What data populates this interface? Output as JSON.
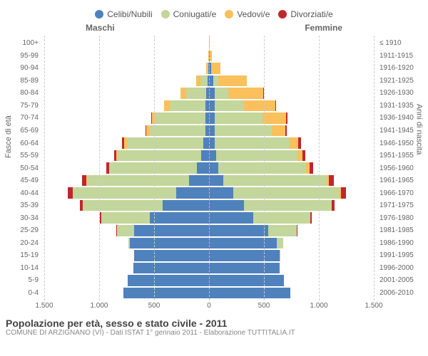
{
  "chart": {
    "type": "population-pyramid",
    "title": "Popolazione per età, sesso e stato civile - 2011",
    "subtitle": "COMUNE DI ARZIGNANO (VI) - Dati ISTAT 1° gennaio 2011 - Elaborazione TUTTITALIA.IT",
    "col_header_male": "Maschi",
    "col_header_female": "Femmine",
    "y_axis_left": "Fasce di età",
    "y_axis_right": "Anni di nascita",
    "x_axis_max": 1500,
    "x_ticks": [
      "1.500",
      "1.000",
      "500",
      "0",
      "500",
      "1.000",
      "1.500"
    ],
    "legend": [
      {
        "label": "Celibi/Nubili",
        "color": "#4f81bd"
      },
      {
        "label": "Coniugati/e",
        "color": "#c3d69b"
      },
      {
        "label": "Vedovi/e",
        "color": "#f9c05b"
      },
      {
        "label": "Divorziati/e",
        "color": "#c0272d"
      }
    ],
    "grid_color": "#cccccc",
    "background_color": "#ffffff",
    "label_fontsize": 10,
    "title_fontsize": 14,
    "age_groups": [
      {
        "age": "100+",
        "year": "≤ 1910",
        "m": [
          0,
          0,
          1,
          0
        ],
        "f": [
          0,
          0,
          5,
          0
        ]
      },
      {
        "age": "95-99",
        "year": "1911-1915",
        "m": [
          0,
          0,
          6,
          0
        ],
        "f": [
          4,
          0,
          22,
          0
        ]
      },
      {
        "age": "90-94",
        "year": "1916-1920",
        "m": [
          6,
          4,
          18,
          0
        ],
        "f": [
          18,
          4,
          85,
          0
        ]
      },
      {
        "age": "85-89",
        "year": "1921-1925",
        "m": [
          15,
          60,
          45,
          0
        ],
        "f": [
          40,
          45,
          260,
          0
        ]
      },
      {
        "age": "80-84",
        "year": "1926-1930",
        "m": [
          25,
          180,
          55,
          0
        ],
        "f": [
          55,
          120,
          320,
          5
        ]
      },
      {
        "age": "75-79",
        "year": "1931-1935",
        "m": [
          30,
          330,
          50,
          0
        ],
        "f": [
          55,
          260,
          290,
          8
        ]
      },
      {
        "age": "70-74",
        "year": "1936-1940",
        "m": [
          35,
          450,
          35,
          5
        ],
        "f": [
          55,
          430,
          215,
          12
        ]
      },
      {
        "age": "65-69",
        "year": "1941-1945",
        "m": [
          35,
          510,
          25,
          10
        ],
        "f": [
          50,
          520,
          125,
          15
        ]
      },
      {
        "age": "60-64",
        "year": "1946-1950",
        "m": [
          50,
          700,
          20,
          20
        ],
        "f": [
          55,
          680,
          75,
          25
        ]
      },
      {
        "age": "55-59",
        "year": "1951-1955",
        "m": [
          70,
          760,
          12,
          25
        ],
        "f": [
          65,
          740,
          45,
          30
        ]
      },
      {
        "age": "50-54",
        "year": "1956-1960",
        "m": [
          110,
          790,
          8,
          30
        ],
        "f": [
          85,
          800,
          30,
          35
        ]
      },
      {
        "age": "45-49",
        "year": "1961-1965",
        "m": [
          180,
          930,
          5,
          40
        ],
        "f": [
          130,
          940,
          20,
          45
        ]
      },
      {
        "age": "40-44",
        "year": "1966-1970",
        "m": [
          300,
          940,
          3,
          40
        ],
        "f": [
          220,
          970,
          12,
          45
        ]
      },
      {
        "age": "35-39",
        "year": "1971-1975",
        "m": [
          420,
          730,
          2,
          25
        ],
        "f": [
          320,
          790,
          6,
          30
        ]
      },
      {
        "age": "30-34",
        "year": "1976-1980",
        "m": [
          540,
          440,
          0,
          12
        ],
        "f": [
          400,
          520,
          3,
          15
        ]
      },
      {
        "age": "25-29",
        "year": "1981-1985",
        "m": [
          680,
          160,
          0,
          3
        ],
        "f": [
          540,
          260,
          0,
          6
        ]
      },
      {
        "age": "20-24",
        "year": "1986-1990",
        "m": [
          720,
          15,
          0,
          0
        ],
        "f": [
          620,
          55,
          0,
          0
        ]
      },
      {
        "age": "15-19",
        "year": "1991-1995",
        "m": [
          680,
          0,
          0,
          0
        ],
        "f": [
          640,
          2,
          0,
          0
        ]
      },
      {
        "age": "10-14",
        "year": "1996-2000",
        "m": [
          690,
          0,
          0,
          0
        ],
        "f": [
          640,
          0,
          0,
          0
        ]
      },
      {
        "age": "5-9",
        "year": "2001-2005",
        "m": [
          740,
          0,
          0,
          0
        ],
        "f": [
          680,
          0,
          0,
          0
        ]
      },
      {
        "age": "0-4",
        "year": "2006-2010",
        "m": [
          780,
          0,
          0,
          0
        ],
        "f": [
          740,
          0,
          0,
          0
        ]
      }
    ]
  }
}
